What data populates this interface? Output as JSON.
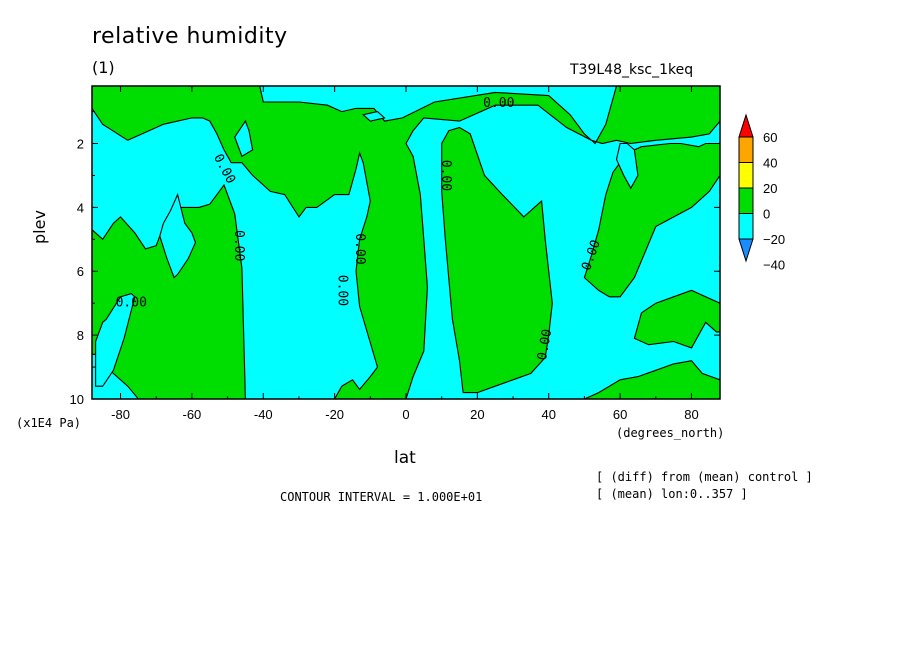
{
  "title": "relative humidity",
  "subtitle": "(1)",
  "run_name": "T39L48_ksc_1keq",
  "ylabel": "plev",
  "xlabel": "lat",
  "yunits": "(x1E4 Pa)",
  "xunits": "(degrees_north)",
  "contour_interval": "CONTOUR INTERVAL = 1.000E+01",
  "notes": [
    "[ (diff) from (mean) control ]",
    "[ (mean) lon:0..357 ]"
  ],
  "colors": {
    "lt_-20": "#1a8cff",
    "-20_0": "#00ffff",
    "0_20": "#00dd00",
    "20_40": "#ffff00",
    "40_60": "#ffa500",
    "gt_60": "#ff0000"
  },
  "chart_data": {
    "type": "heatmap",
    "subtype": "filled contour",
    "title": "relative humidity",
    "xlabel": "lat",
    "ylabel": "plev",
    "xlim": [
      -88,
      88
    ],
    "ylim": [
      10,
      0.2
    ],
    "x_ticks": [
      "-80",
      "-60",
      "-40",
      "-20",
      "0",
      "20",
      "40",
      "60",
      "80"
    ],
    "y_ticks": [
      "2",
      "4",
      "6",
      "8",
      "10"
    ],
    "colorbar": {
      "levels": [
        "60",
        "40",
        "20",
        "0",
        "−20",
        "−40"
      ],
      "colors": [
        "#ff0000",
        "#ffa500",
        "#ffff00",
        "#00dd00",
        "#00ffff",
        "#1a8cff"
      ],
      "extend": "both"
    },
    "contour_labels": [
      "0.00",
      "0.00",
      "0.00",
      "0.00",
      "0.00",
      "0.00",
      "0.00",
      "0.00",
      "0.00"
    ],
    "regions": [
      {
        "class": "0_20",
        "points": [
          [
            -88,
            4.7
          ],
          [
            -85,
            5
          ],
          [
            -82,
            4.5
          ],
          [
            -80,
            4.3
          ],
          [
            -76,
            4.8
          ],
          [
            -73,
            5.3
          ],
          [
            -70,
            5.2
          ],
          [
            -67,
            4.3
          ],
          [
            -63,
            4.0
          ],
          [
            -58,
            4.0
          ],
          [
            -55,
            3.9
          ],
          [
            -51,
            3.3
          ],
          [
            -48,
            4.2
          ],
          [
            -46,
            5.9
          ],
          [
            -45,
            10
          ],
          [
            -75,
            10
          ],
          [
            -78,
            9.6
          ],
          [
            -84,
            9.0
          ],
          [
            -87,
            8.6
          ],
          [
            -88,
            8.6
          ]
        ]
      },
      {
        "class": "-20_0",
        "points": [
          [
            -64,
            3.6
          ],
          [
            -62,
            4.5
          ],
          [
            -60,
            4.8
          ],
          [
            -59,
            5.1
          ],
          [
            -61,
            5.6
          ],
          [
            -64,
            6.1
          ],
          [
            -65,
            6.2
          ],
          [
            -67,
            5.6
          ],
          [
            -69,
            4.9
          ],
          [
            -68,
            4.5
          ],
          [
            -66,
            4.1
          ]
        ]
      },
      {
        "class": "-20_0",
        "points": [
          [
            -84,
            7.5
          ],
          [
            -80,
            6.8
          ],
          [
            -77,
            6.7
          ],
          [
            -76,
            6.8
          ],
          [
            -79,
            8.1
          ],
          [
            -82,
            9.1
          ],
          [
            -85,
            9.6
          ],
          [
            -87,
            9.6
          ],
          [
            -87,
            8.2
          ],
          [
            -85,
            7.6
          ]
        ]
      },
      {
        "class": "0_20",
        "points": [
          [
            -88,
            0.2
          ],
          [
            -50,
            0.2
          ],
          [
            -41,
            0.2
          ],
          [
            -40,
            0.7
          ],
          [
            -30,
            0.7
          ],
          [
            -22,
            0.8
          ],
          [
            -18,
            1.0
          ],
          [
            -14,
            0.9
          ],
          [
            -9,
            0.9
          ],
          [
            -6,
            1.3
          ],
          [
            -1,
            1.2
          ],
          [
            8,
            0.7
          ],
          [
            25,
            0.4
          ],
          [
            40,
            0.5
          ],
          [
            46,
            1.1
          ],
          [
            50,
            1.7
          ],
          [
            53,
            2.0
          ],
          [
            56,
            1.4
          ],
          [
            59,
            0.2
          ],
          [
            88,
            0.2
          ],
          [
            88,
            1.3
          ],
          [
            85,
            1.7
          ],
          [
            80,
            1.8
          ],
          [
            70,
            1.9
          ],
          [
            63,
            2.0
          ],
          [
            59,
            1.9
          ],
          [
            55,
            2.0
          ],
          [
            52,
            1.9
          ],
          [
            45,
            1.5
          ],
          [
            37,
            0.8
          ],
          [
            25,
            0.8
          ],
          [
            15,
            1.3
          ],
          [
            5,
            1.2
          ],
          [
            2,
            1.6
          ],
          [
            0,
            2.0
          ],
          [
            2,
            2.4
          ],
          [
            4,
            3.6
          ],
          [
            5,
            5.0
          ],
          [
            6,
            6.5
          ],
          [
            5,
            8.5
          ],
          [
            2,
            9.3
          ],
          [
            0,
            10
          ],
          [
            -20,
            10
          ],
          [
            -18,
            9.6
          ],
          [
            -15,
            9.4
          ],
          [
            -13,
            9.7
          ],
          [
            -10,
            9.3
          ],
          [
            -8,
            9.0
          ],
          [
            -13,
            7.1
          ],
          [
            -14,
            6.0
          ],
          [
            -13,
            5.0
          ],
          [
            -11,
            4.3
          ],
          [
            -10,
            3.8
          ],
          [
            -12,
            2.6
          ],
          [
            -13,
            2.3
          ],
          [
            -14,
            2.8
          ],
          [
            -16,
            3.6
          ],
          [
            -20,
            3.6
          ],
          [
            -25,
            4.0
          ],
          [
            -28,
            4.0
          ],
          [
            -30,
            4.3
          ],
          [
            -34,
            3.6
          ],
          [
            -38,
            3.5
          ],
          [
            -40,
            3.3
          ],
          [
            -43,
            3.0
          ],
          [
            -46,
            2.6
          ],
          [
            -49,
            2.6
          ],
          [
            -51,
            2.2
          ],
          [
            -53,
            1.7
          ],
          [
            -55,
            1.3
          ],
          [
            -57,
            1.2
          ],
          [
            -60,
            1.2
          ],
          [
            -68,
            1.4
          ],
          [
            -78,
            1.9
          ],
          [
            -85,
            1.4
          ],
          [
            -88,
            0.9
          ]
        ]
      },
      {
        "class": "0_20",
        "points": [
          [
            10,
            2.0
          ],
          [
            12,
            1.6
          ],
          [
            15,
            1.5
          ],
          [
            18,
            1.7
          ],
          [
            22,
            3.0
          ],
          [
            27,
            3.6
          ],
          [
            33,
            4.3
          ],
          [
            37,
            3.9
          ],
          [
            38,
            3.8
          ],
          [
            39,
            5.0
          ],
          [
            40,
            6.0
          ],
          [
            41,
            7.0
          ],
          [
            40,
            8.0
          ],
          [
            39,
            8.7
          ],
          [
            35,
            9.2
          ],
          [
            30,
            9.4
          ],
          [
            25,
            9.6
          ],
          [
            20,
            9.8
          ],
          [
            16,
            9.8
          ],
          [
            15,
            8.8
          ],
          [
            13,
            7.5
          ],
          [
            11,
            5.0
          ],
          [
            10,
            3.5
          ]
        ]
      },
      {
        "class": "0_20",
        "points": [
          [
            88,
            2.0
          ],
          [
            84,
            2.0
          ],
          [
            82,
            2.1
          ],
          [
            77,
            2.0
          ],
          [
            74,
            2.0
          ],
          [
            66,
            2.1
          ],
          [
            62,
            2.3
          ],
          [
            58,
            2.9
          ],
          [
            56,
            3.6
          ],
          [
            54,
            4.7
          ],
          [
            52,
            5.5
          ],
          [
            50,
            6.2
          ],
          [
            54,
            6.6
          ],
          [
            57,
            6.8
          ],
          [
            60,
            6.8
          ],
          [
            64,
            6.2
          ],
          [
            70,
            4.6
          ],
          [
            80,
            4.0
          ],
          [
            85,
            3.5
          ],
          [
            88,
            3.0
          ]
        ]
      },
      {
        "class": "-20_0",
        "points": [
          [
            60,
            2.0
          ],
          [
            62,
            2.0
          ],
          [
            64,
            2.2
          ],
          [
            65,
            3.0
          ],
          [
            63,
            3.4
          ],
          [
            61,
            3.0
          ],
          [
            59,
            2.5
          ]
        ]
      },
      {
        "class": "0_20",
        "points": [
          [
            88,
            7.0
          ],
          [
            80,
            6.6
          ],
          [
            75,
            6.8
          ],
          [
            70,
            7.0
          ],
          [
            66,
            7.3
          ],
          [
            64,
            8.1
          ],
          [
            68,
            8.3
          ],
          [
            75,
            8.2
          ],
          [
            80,
            8.4
          ],
          [
            84,
            7.6
          ],
          [
            87,
            7.9
          ],
          [
            88,
            7.9
          ]
        ]
      },
      {
        "class": "0_20",
        "points": [
          [
            88,
            9.4
          ],
          [
            83,
            9.2
          ],
          [
            80,
            8.8
          ],
          [
            75,
            8.9
          ],
          [
            70,
            9.1
          ],
          [
            65,
            9.3
          ],
          [
            60,
            9.4
          ],
          [
            54,
            9.8
          ],
          [
            50,
            10
          ],
          [
            88,
            10
          ]
        ]
      },
      {
        "class": "-20_0",
        "points": [
          [
            -45,
            1.3
          ],
          [
            -48,
            1.8
          ],
          [
            -46,
            2.4
          ],
          [
            -43,
            2.2
          ],
          [
            -44,
            1.6
          ]
        ]
      },
      {
        "class": "-20_0",
        "points": [
          [
            -12,
            1.1
          ],
          [
            -8,
            1.0
          ],
          [
            -6,
            1.2
          ],
          [
            -10,
            1.3
          ]
        ]
      }
    ]
  }
}
